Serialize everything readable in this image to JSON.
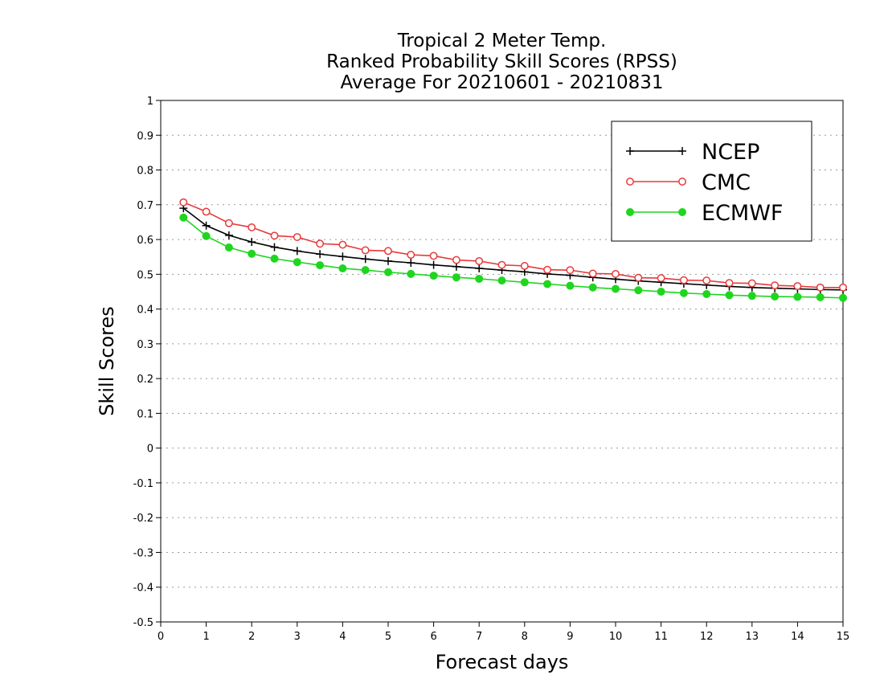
{
  "chart_data": {
    "type": "line",
    "title_lines": [
      "Tropical 2 Meter Temp.",
      "Ranked Probability Skill Scores (RPSS)",
      "Average For 20210601 - 20210831"
    ],
    "xlabel": "Forecast days",
    "ylabel": "Skill Scores",
    "xlim": [
      0,
      15
    ],
    "ylim": [
      -0.5,
      1
    ],
    "x_ticks": [
      0,
      1,
      2,
      3,
      4,
      5,
      6,
      7,
      8,
      9,
      10,
      11,
      12,
      13,
      14,
      15
    ],
    "x_tick_labels": [
      "0",
      "1",
      "2",
      "3",
      "4",
      "5",
      "6",
      "7",
      "8",
      "9",
      "10",
      "11",
      "12",
      "13",
      "14",
      "15"
    ],
    "y_ticks": [
      -0.5,
      -0.4,
      -0.3,
      -0.2,
      -0.1,
      0,
      0.1,
      0.2,
      0.3,
      0.4,
      0.5,
      0.6,
      0.7,
      0.8,
      0.9,
      1
    ],
    "y_tick_labels": [
      "-0.5",
      "-0.4",
      "-0.3",
      "-0.2",
      "-0.1",
      "0",
      "0.1",
      "0.2",
      "0.3",
      "0.4",
      "0.5",
      "0.6",
      "0.7",
      "0.8",
      "0.9",
      "1"
    ],
    "grid": "horizontal dotted",
    "legend_position": "top-right",
    "x": [
      0.5,
      1,
      1.5,
      2,
      2.5,
      3,
      3.5,
      4,
      4.5,
      5,
      5.5,
      6,
      6.5,
      7,
      7.5,
      8,
      8.5,
      9,
      9.5,
      10,
      10.5,
      11,
      11.5,
      12,
      12.5,
      13,
      13.5,
      14,
      14.5,
      15
    ],
    "series": [
      {
        "name": "NCEP",
        "color": "#000000",
        "marker": "plus",
        "values": [
          0.69,
          0.64,
          0.612,
          0.593,
          0.578,
          0.567,
          0.558,
          0.551,
          0.544,
          0.538,
          0.533,
          0.527,
          0.522,
          0.517,
          0.512,
          0.507,
          0.501,
          0.497,
          0.491,
          0.486,
          0.481,
          0.477,
          0.473,
          0.469,
          0.465,
          0.462,
          0.46,
          0.458,
          0.456,
          0.455
        ]
      },
      {
        "name": "CMC",
        "color": "#e8393a",
        "marker": "open-circle",
        "values": [
          0.707,
          0.68,
          0.647,
          0.635,
          0.611,
          0.607,
          0.588,
          0.585,
          0.569,
          0.567,
          0.556,
          0.553,
          0.541,
          0.538,
          0.527,
          0.524,
          0.513,
          0.512,
          0.502,
          0.501,
          0.49,
          0.489,
          0.483,
          0.482,
          0.475,
          0.474,
          0.468,
          0.466,
          0.462,
          0.462
        ]
      },
      {
        "name": "ECMWF",
        "color": "#1fd61f",
        "marker": "filled-circle",
        "values": [
          0.663,
          0.61,
          0.577,
          0.559,
          0.545,
          0.535,
          0.526,
          0.517,
          0.512,
          0.506,
          0.501,
          0.496,
          0.491,
          0.487,
          0.482,
          0.477,
          0.472,
          0.467,
          0.462,
          0.458,
          0.454,
          0.45,
          0.446,
          0.443,
          0.44,
          0.438,
          0.436,
          0.435,
          0.434,
          0.432
        ]
      }
    ]
  }
}
